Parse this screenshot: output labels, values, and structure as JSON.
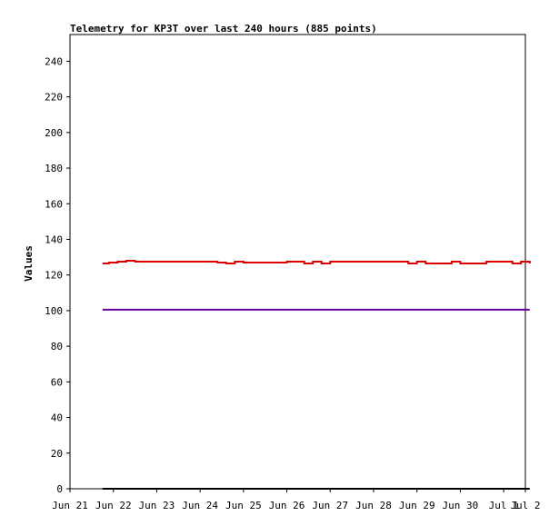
{
  "chart_data": {
    "type": "line",
    "title": "Telemetry for KP3T over last 240 hours (885 points)",
    "xlabel": "",
    "ylabel": "Values",
    "ylim": [
      0,
      255
    ],
    "yticks": [
      0,
      20,
      40,
      60,
      80,
      100,
      120,
      140,
      160,
      180,
      200,
      220,
      240
    ],
    "xlim": [
      0,
      10.5
    ],
    "xticks": [
      {
        "value": 0,
        "label": "Jun 21"
      },
      {
        "value": 1,
        "label": "Jun 22"
      },
      {
        "value": 2,
        "label": "Jun 23"
      },
      {
        "value": 3,
        "label": "Jun 24"
      },
      {
        "value": 4,
        "label": "Jun 25"
      },
      {
        "value": 5,
        "label": "Jun 26"
      },
      {
        "value": 6,
        "label": "Jun 27"
      },
      {
        "value": 7,
        "label": "Jun 28"
      },
      {
        "value": 8,
        "label": "Jun 29"
      },
      {
        "value": 9,
        "label": "Jun 30"
      },
      {
        "value": 10,
        "label": "Jul 1"
      },
      {
        "value": 10.5,
        "label": "Jul 2"
      }
    ],
    "grid": false,
    "series": [
      {
        "color": "#dd0000",
        "x": [
          0.75,
          0.9,
          1.1,
          1.3,
          1.5,
          2.0,
          2.5,
          3.0,
          3.4,
          3.6,
          3.8,
          4.0,
          4.5,
          5.0,
          5.4,
          5.6,
          5.8,
          6.0,
          6.5,
          7.0,
          7.5,
          7.8,
          8.0,
          8.2,
          8.5,
          8.8,
          9.0,
          9.3,
          9.6,
          10.0,
          10.2,
          10.4,
          10.6
        ],
        "values": [
          126.5,
          127,
          127.5,
          128,
          127.5,
          127.5,
          127.5,
          127.5,
          127,
          126.5,
          127.5,
          127,
          127,
          127.5,
          126.5,
          127.5,
          126.5,
          127.5,
          127.5,
          127.5,
          127.5,
          126.5,
          127.5,
          126.5,
          126.5,
          127.5,
          126.5,
          126.5,
          127.5,
          127.5,
          126.5,
          127.5,
          126.5
        ]
      },
      {
        "color": "#660099",
        "x": [
          0.75,
          10.6
        ],
        "values": [
          100.5,
          100.5
        ]
      },
      {
        "color": "#000000",
        "x": [
          0.75,
          10.6
        ],
        "values": [
          0,
          0
        ]
      }
    ]
  }
}
